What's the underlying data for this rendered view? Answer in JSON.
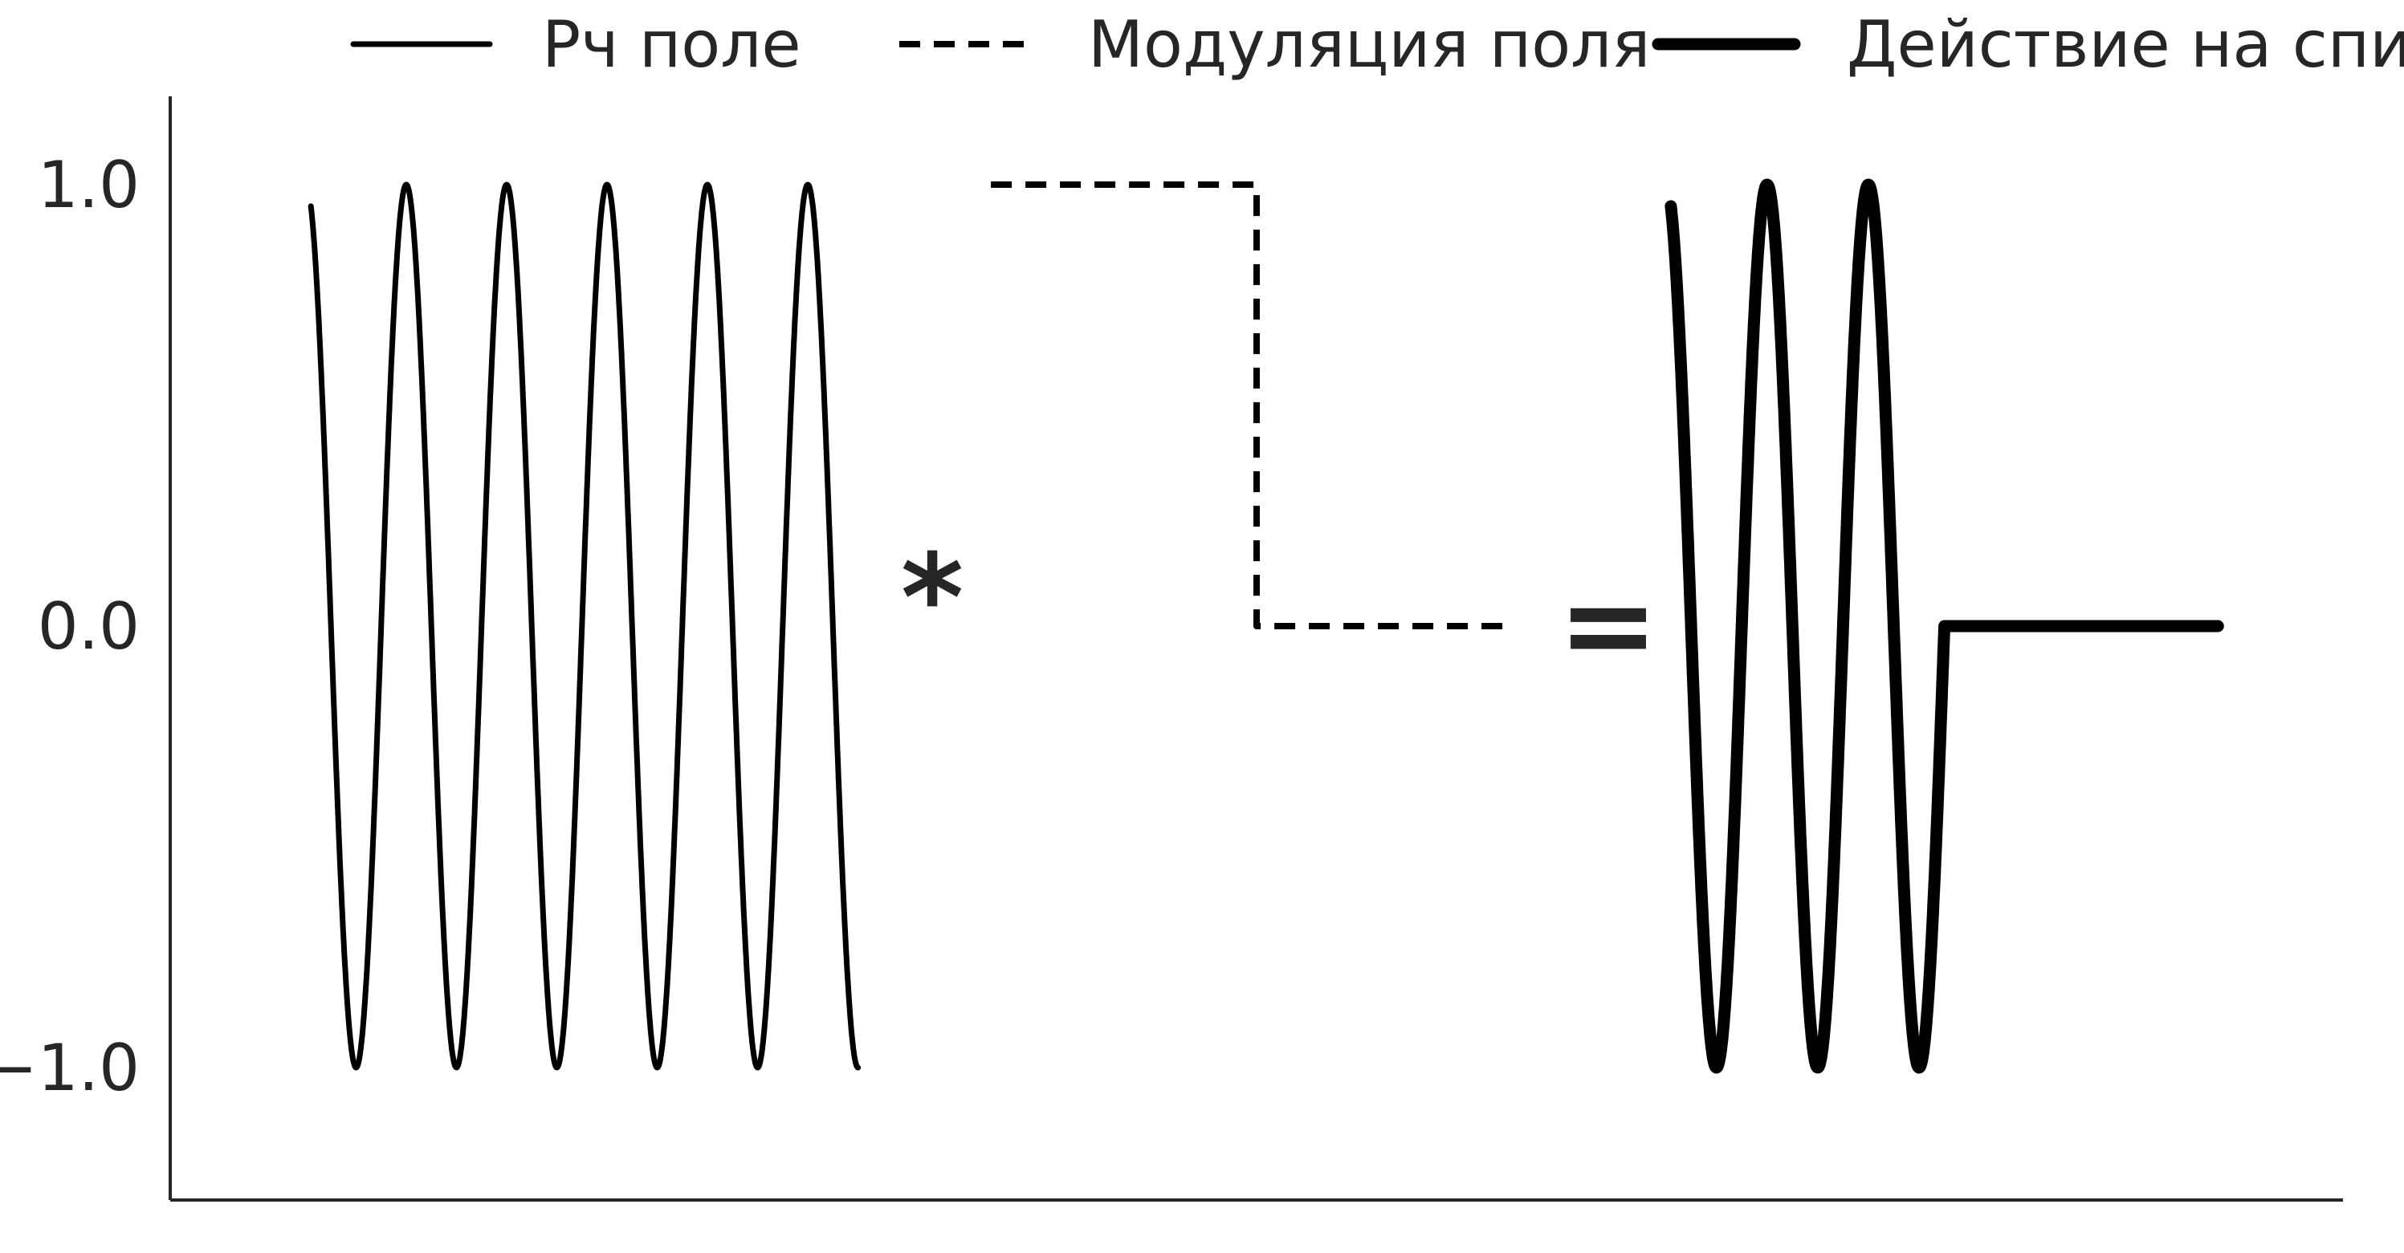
{
  "chart_data": {
    "type": "line",
    "title": "",
    "xlabel": "",
    "ylabel": "",
    "ylim": [
      -1.3,
      1.2
    ],
    "y_ticks": [
      -1.0,
      0.0,
      1.0
    ],
    "y_tick_labels": [
      "−1.0",
      "0.0",
      "1.0"
    ],
    "x_ticks_visible": false,
    "grid": false,
    "spines": [
      "left",
      "bottom"
    ],
    "legend": {
      "placement": "top-center",
      "columns": 3,
      "entries": [
        {
          "label": "Рч поле",
          "style": "solid"
        },
        {
          "label": "Модуляция поля",
          "style": "dashed"
        },
        {
          "label": "Действие на спин",
          "style": "thick"
        }
      ]
    },
    "operators": [
      "*",
      "="
    ],
    "series": [
      {
        "name": "Рч поле",
        "kind": "cosine",
        "style": "solid",
        "color": "#000000",
        "x_start": 0.0,
        "x_end": 7.0,
        "cycles": 5.45,
        "description_values": {
          "start": 0.95,
          "min": -1.0,
          "max": 1.0,
          "end": -0.97
        }
      },
      {
        "name": "Модуляция поля",
        "kind": "step",
        "style": "dashed",
        "color": "#000000",
        "points": [
          {
            "x": 8.7,
            "y": 1.0
          },
          {
            "x": 12.1,
            "y": 1.0
          },
          {
            "x": 12.1,
            "y": 0.0
          },
          {
            "x": 15.4,
            "y": 0.0
          }
        ]
      },
      {
        "name": "Действие на спин",
        "kind": "cosine_then_zero",
        "style": "thick",
        "color": "#000000",
        "x_start": 17.4,
        "x_cut": 20.9,
        "x_end": 24.4,
        "cycles_before_cut": 2.7,
        "description_values": {
          "start": 0.95,
          "min": -1.0,
          "max": 1.0,
          "after_cut": 0.0
        }
      }
    ],
    "x_range": [
      -1.8,
      26.0
    ],
    "colors": {
      "line": "#000000",
      "axis": "#262626",
      "text": "#262626",
      "background": "#ffffff"
    }
  }
}
